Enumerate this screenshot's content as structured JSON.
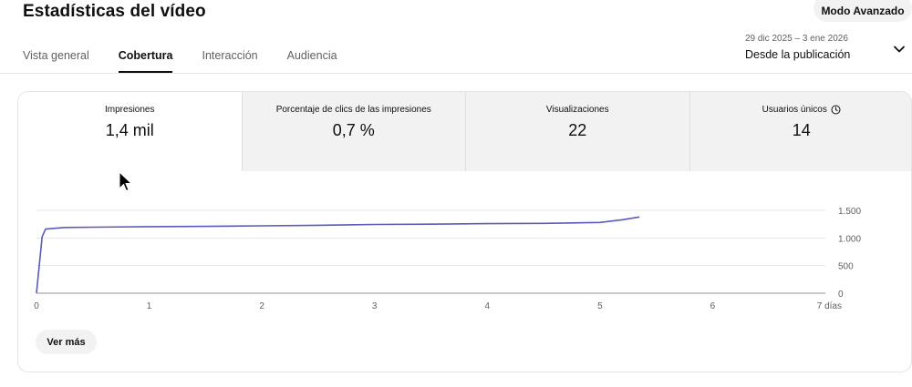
{
  "header": {
    "title": "Estadísticas del vídeo",
    "advanced_mode_label": "Modo Avanzado"
  },
  "tabs": [
    {
      "label": "Vista general",
      "active": false
    },
    {
      "label": "Cobertura",
      "active": true
    },
    {
      "label": "Interacción",
      "active": false
    },
    {
      "label": "Audiencia",
      "active": false
    }
  ],
  "date_range": {
    "range": "29 dic 2025 – 3 ene 2026",
    "label": "Desde la publicación"
  },
  "metrics": [
    {
      "label": "Impresiones",
      "value": "1,4 mil",
      "active": true,
      "icon": ""
    },
    {
      "label": "Porcentaje de clics de las impresiones",
      "value": "0,7 %",
      "active": false,
      "icon": ""
    },
    {
      "label": "Visualizaciones",
      "value": "22",
      "active": false,
      "icon": ""
    },
    {
      "label": "Usuarios únicos",
      "value": "14",
      "active": false,
      "icon": "clock-icon"
    }
  ],
  "chart_data": {
    "type": "line",
    "xlabel": "",
    "ylabel": "",
    "xlim": [
      0,
      7
    ],
    "ylim": [
      0,
      1500
    ],
    "x_ticks": [
      0,
      1,
      2,
      3,
      4,
      5,
      6,
      7
    ],
    "x_tick_labels": [
      "0",
      "1",
      "2",
      "3",
      "4",
      "5",
      "6",
      "7 días"
    ],
    "y_ticks": [
      0,
      500,
      1000,
      1500
    ],
    "y_tick_labels": [
      "0",
      "500",
      "1.000",
      "1.500"
    ],
    "grid": true,
    "line_color": "#5a5ab8",
    "series": [
      {
        "x": [
          0,
          0.05,
          0.08,
          0.25,
          0.5,
          1.0,
          1.5,
          2.0,
          2.5,
          3.0,
          3.5,
          4.0,
          4.5,
          5.0,
          5.2,
          5.35
        ],
        "values": [
          0,
          1020,
          1160,
          1190,
          1195,
          1205,
          1210,
          1220,
          1230,
          1245,
          1250,
          1260,
          1265,
          1280,
          1330,
          1380
        ]
      }
    ]
  },
  "more_button_label": "Ver más"
}
